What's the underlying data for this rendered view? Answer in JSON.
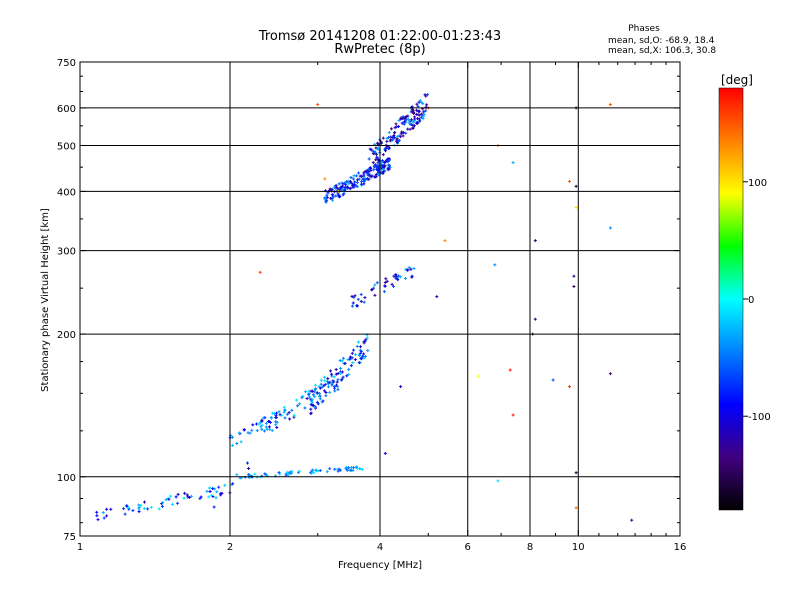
{
  "chart_data": {
    "type": "scatter",
    "title": "Tromsø 20141208 01:22:00-01:23:43",
    "subtitle": "RwPretec (8p)",
    "stats": {
      "heading": "Phases",
      "line_o": "mean, sd,O: -68.9, 18.4",
      "line_x": "mean, sd,X: 106.3, 30.8"
    },
    "xlabel": "Frequency [MHz]",
    "ylabel": "Stationary phase Virtual Height [km]",
    "x_scale": "log",
    "y_scale": "log",
    "xlim": [
      1,
      16
    ],
    "ylim": [
      75,
      750
    ],
    "x_ticks": [
      {
        "v": 1,
        "label": "1"
      },
      {
        "v": 2,
        "label": "2"
      },
      {
        "v": 4,
        "label": "4"
      },
      {
        "v": 6,
        "label": "6"
      },
      {
        "v": 8,
        "label": "8"
      },
      {
        "v": 10,
        "label": "10"
      },
      {
        "v": 16,
        "label": "16"
      }
    ],
    "y_ticks": [
      {
        "v": 75,
        "label": "75"
      },
      {
        "v": 100,
        "label": "100"
      },
      {
        "v": 200,
        "label": "200"
      },
      {
        "v": 300,
        "label": "300"
      },
      {
        "v": 400,
        "label": "400"
      },
      {
        "v": 500,
        "label": "500"
      },
      {
        "v": 600,
        "label": "600"
      },
      {
        "v": 750,
        "label": "750"
      }
    ],
    "x_grid": [
      2,
      4,
      6,
      8,
      10
    ],
    "y_grid": [
      100,
      200,
      300,
      400,
      500,
      600
    ],
    "grid": true,
    "colorbar": {
      "label": "[deg]",
      "range": [
        -180,
        180
      ],
      "ticks": [
        {
          "v": 100,
          "label": "100"
        },
        {
          "v": 0,
          "label": "0"
        },
        {
          "v": -100,
          "label": "-100"
        }
      ],
      "colors": [
        "#ff0000",
        "#ff8000",
        "#ffff00",
        "#00ff00",
        "#00ffff",
        "#0080ff",
        "#0000ff",
        "#400080",
        "#000000"
      ]
    },
    "clusters": [
      {
        "fmin": 1.08,
        "fmax": 1.95,
        "hmin": 80,
        "hmax": 96,
        "n": 55,
        "phases": [
          -110,
          -90,
          -70,
          -30,
          -10
        ]
      },
      {
        "fmin": 1.85,
        "fmax": 2.2,
        "hmin": 84,
        "hmax": 108,
        "n": 14,
        "phases": [
          -120,
          -100,
          -80,
          -20
        ]
      },
      {
        "fmin": 2.05,
        "fmax": 3.7,
        "hmin": 99,
        "hmax": 105,
        "n": 60,
        "phases": [
          -30,
          -10,
          -60
        ]
      },
      {
        "fmin": 2.0,
        "fmax": 2.6,
        "hmin": 115,
        "hmax": 140,
        "n": 35,
        "phases": [
          -40,
          -20,
          -90
        ]
      },
      {
        "fmin": 2.3,
        "fmax": 3.3,
        "hmin": 120,
        "hmax": 165,
        "n": 70,
        "phases": [
          -50,
          -30,
          -110,
          -10
        ]
      },
      {
        "fmin": 2.9,
        "fmax": 3.8,
        "hmin": 135,
        "hmax": 200,
        "n": 90,
        "phases": [
          -40,
          -80,
          -110,
          -20
        ]
      },
      {
        "fmin": 3.5,
        "fmax": 4.7,
        "hmin": 225,
        "hmax": 280,
        "n": 45,
        "phases": [
          -100,
          -60,
          -30,
          -120
        ]
      },
      {
        "fmin": 3.1,
        "fmax": 4.2,
        "hmin": 375,
        "hmax": 470,
        "n": 190,
        "phases": [
          -100,
          -60,
          -30,
          -120,
          -80
        ]
      },
      {
        "fmin": 3.8,
        "fmax": 5.0,
        "hmin": 440,
        "hmax": 640,
        "n": 160,
        "phases": [
          -100,
          -140,
          -60,
          -30,
          -120
        ]
      }
    ],
    "points": [
      {
        "x": 3.0,
        "y": 610,
        "phase": 150
      },
      {
        "x": 2.3,
        "y": 270,
        "phase": 160
      },
      {
        "x": 5.4,
        "y": 315,
        "phase": 130
      },
      {
        "x": 6.3,
        "y": 163,
        "phase": 90
      },
      {
        "x": 6.8,
        "y": 280,
        "phase": -40
      },
      {
        "x": 6.9,
        "y": 500,
        "phase": 150
      },
      {
        "x": 6.9,
        "y": 98,
        "phase": -10
      },
      {
        "x": 7.3,
        "y": 168,
        "phase": 170
      },
      {
        "x": 7.4,
        "y": 135,
        "phase": 170
      },
      {
        "x": 7.4,
        "y": 460,
        "phase": -30
      },
      {
        "x": 8.2,
        "y": 315,
        "phase": -150
      },
      {
        "x": 8.2,
        "y": 215,
        "phase": -140
      },
      {
        "x": 8.1,
        "y": 200,
        "phase": -160
      },
      {
        "x": 8.9,
        "y": 160,
        "phase": -60
      },
      {
        "x": 9.6,
        "y": 420,
        "phase": 150
      },
      {
        "x": 9.6,
        "y": 155,
        "phase": 160
      },
      {
        "x": 9.9,
        "y": 600,
        "phase": -160
      },
      {
        "x": 9.9,
        "y": 410,
        "phase": -160
      },
      {
        "x": 9.9,
        "y": 370,
        "phase": 100
      },
      {
        "x": 9.8,
        "y": 265,
        "phase": -130
      },
      {
        "x": 9.8,
        "y": 252,
        "phase": -140
      },
      {
        "x": 9.9,
        "y": 102,
        "phase": -160
      },
      {
        "x": 9.9,
        "y": 86,
        "phase": 140
      },
      {
        "x": 11.6,
        "y": 610,
        "phase": 150
      },
      {
        "x": 11.6,
        "y": 335,
        "phase": -40
      },
      {
        "x": 11.6,
        "y": 165,
        "phase": -140
      },
      {
        "x": 12.8,
        "y": 81,
        "phase": -130
      },
      {
        "x": 4.4,
        "y": 155,
        "phase": -110
      },
      {
        "x": 4.1,
        "y": 112,
        "phase": -100
      },
      {
        "x": 3.1,
        "y": 425,
        "phase": 130
      },
      {
        "x": 3.3,
        "y": 400,
        "phase": 90
      },
      {
        "x": 5.2,
        "y": 240,
        "phase": -120
      },
      {
        "x": 5.0,
        "y": 600,
        "phase": 160
      }
    ]
  }
}
